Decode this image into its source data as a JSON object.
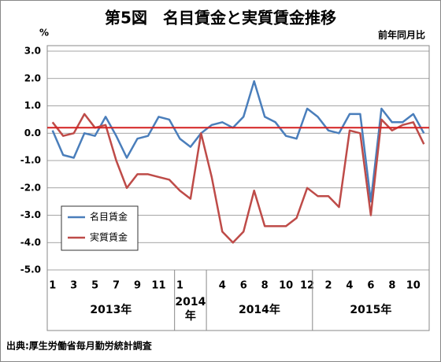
{
  "chart_data": {
    "type": "line",
    "title": "第5図　名目賃金と実質賃金推移",
    "unit_label": "%",
    "subtitle": "前年同月比",
    "source": "出典:厚生労働省毎月勤労統計調査",
    "categories": [
      "1",
      null,
      "3",
      null,
      "5",
      null,
      "7",
      null,
      "9",
      null,
      "11",
      null,
      "1",
      null,
      null,
      null,
      "4",
      null,
      "6",
      null,
      "8",
      null,
      "10",
      null,
      "12",
      null,
      "2",
      null,
      "4",
      null,
      "6",
      null,
      "8",
      null,
      "10",
      null
    ],
    "groups": [
      {
        "label": "2013年",
        "start": 0,
        "end": 11
      },
      {
        "label": "2014年",
        "start": 12,
        "end": 14
      },
      {
        "label": "2014年",
        "start": 15,
        "end": 24
      },
      {
        "label": "2015年",
        "start": 25,
        "end": 35
      }
    ],
    "series": [
      {
        "name": "名目賃金",
        "color": "#4a7ebb",
        "values": [
          0.1,
          -0.8,
          -0.9,
          0.0,
          -0.1,
          0.6,
          -0.1,
          -0.9,
          -0.2,
          -0.1,
          0.6,
          0.5,
          -0.2,
          -0.5,
          0.0,
          0.3,
          0.4,
          0.2,
          0.6,
          1.9,
          0.6,
          0.4,
          -0.1,
          -0.2,
          0.9,
          0.6,
          0.1,
          0.0,
          0.7,
          0.7,
          -2.5,
          0.9,
          0.4,
          0.4,
          0.7,
          0.0
        ]
      },
      {
        "name": "実質賃金",
        "color": "#be4b48",
        "values": [
          0.4,
          -0.1,
          0.0,
          0.7,
          0.2,
          0.3,
          -1.0,
          -2.0,
          -1.5,
          -1.5,
          -1.6,
          -1.7,
          -2.1,
          -2.4,
          0.0,
          -1.6,
          -3.6,
          -4.0,
          -3.6,
          -2.1,
          -3.4,
          -3.4,
          -3.4,
          -3.1,
          -2.0,
          -2.3,
          -2.3,
          -2.7,
          0.1,
          0.0,
          -3.0,
          0.5,
          0.1,
          0.3,
          0.4,
          -0.4
        ]
      }
    ],
    "reference_line": {
      "value": 0.2,
      "color": "#d42020"
    },
    "ylim": [
      -5,
      3
    ],
    "yticks": [
      {
        "value": 3,
        "label": "3.0"
      },
      {
        "value": 2,
        "label": "2.0"
      },
      {
        "value": 1,
        "label": "1.0"
      },
      {
        "value": 0,
        "label": "0.0"
      },
      {
        "value": -1,
        "label": "-1.0"
      },
      {
        "value": -2,
        "label": "-2.0"
      },
      {
        "value": -3,
        "label": "-3.0"
      },
      {
        "value": -4,
        "label": "-4.0"
      },
      {
        "value": -5,
        "label": "-5.0"
      }
    ],
    "grid": true
  }
}
